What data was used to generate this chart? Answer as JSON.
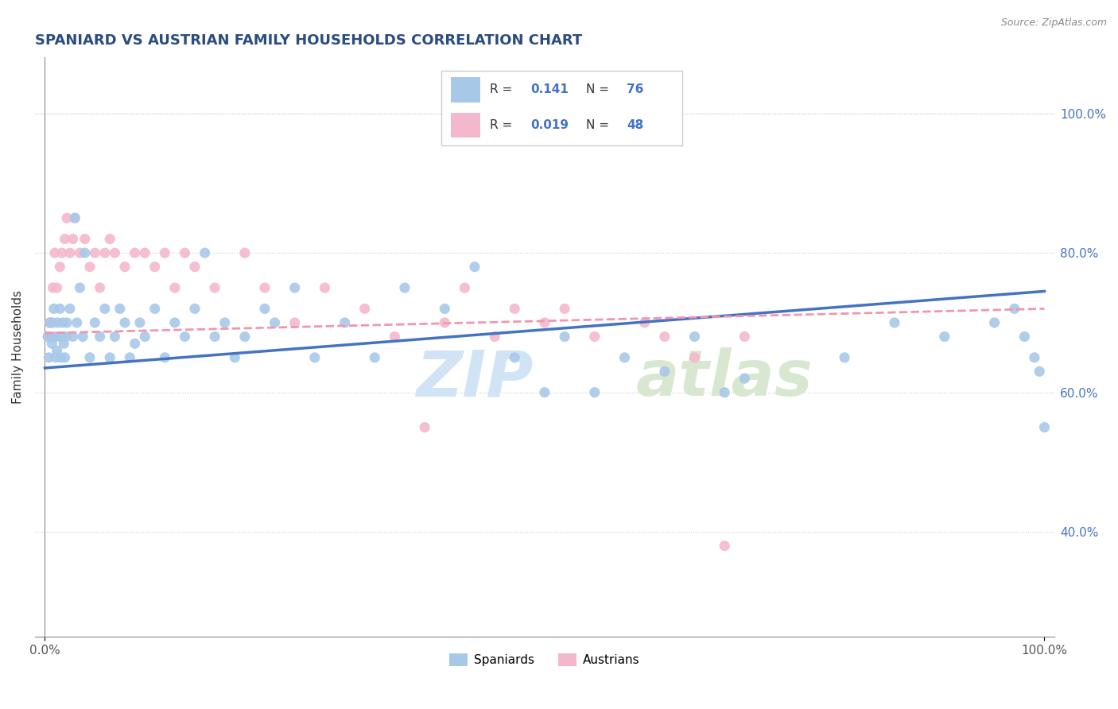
{
  "title": "SPANIARD VS AUSTRIAN FAMILY HOUSEHOLDS CORRELATION CHART",
  "source": "Source: ZipAtlas.com",
  "ylabel": "Family Households",
  "spaniard_color": "#a8c8e8",
  "austrian_color": "#f4b8cc",
  "spaniard_line_color": "#4472c4",
  "austrian_line_color": "#f096b0",
  "yticks": [
    40,
    60,
    80,
    100
  ],
  "ytick_labels": [
    "40.0%",
    "60.0%",
    "80.0%",
    "100.0%"
  ],
  "R_spaniard": "0.141",
  "N_spaniard": "76",
  "R_austrian": "0.019",
  "N_austrian": "48",
  "spaniard_x": [
    0.3,
    0.4,
    0.5,
    0.6,
    0.7,
    0.8,
    0.9,
    1.0,
    1.1,
    1.2,
    1.3,
    1.4,
    1.5,
    1.6,
    1.7,
    1.8,
    1.9,
    2.0,
    2.1,
    2.2,
    2.5,
    2.8,
    3.0,
    3.2,
    3.5,
    3.8,
    4.0,
    4.5,
    5.0,
    5.5,
    6.0,
    6.5,
    7.0,
    7.5,
    8.0,
    8.5,
    9.0,
    9.5,
    10.0,
    11.0,
    12.0,
    13.0,
    14.0,
    15.0,
    16.0,
    17.0,
    18.0,
    19.0,
    20.0,
    22.0,
    23.0,
    25.0,
    27.0,
    30.0,
    33.0,
    36.0,
    40.0,
    43.0,
    47.0,
    50.0,
    52.0,
    55.0,
    58.0,
    62.0,
    65.0,
    68.0,
    70.0,
    80.0,
    85.0,
    90.0,
    95.0,
    97.0,
    98.0,
    99.0,
    99.5,
    100.0
  ],
  "spaniard_y": [
    68,
    65,
    70,
    68,
    67,
    70,
    72,
    68,
    65,
    66,
    70,
    68,
    72,
    65,
    68,
    70,
    67,
    65,
    68,
    70,
    72,
    68,
    85,
    70,
    75,
    68,
    80,
    65,
    70,
    68,
    72,
    65,
    68,
    72,
    70,
    65,
    67,
    70,
    68,
    72,
    65,
    70,
    68,
    72,
    80,
    68,
    70,
    65,
    68,
    72,
    70,
    75,
    65,
    70,
    65,
    75,
    72,
    78,
    65,
    60,
    68,
    60,
    65,
    63,
    68,
    60,
    62,
    65,
    70,
    68,
    70,
    72,
    68,
    65,
    63,
    55
  ],
  "austrian_x": [
    0.3,
    0.5,
    0.8,
    1.0,
    1.2,
    1.5,
    1.7,
    2.0,
    2.2,
    2.5,
    2.8,
    3.0,
    3.5,
    4.0,
    4.5,
    5.0,
    5.5,
    6.0,
    6.5,
    7.0,
    8.0,
    9.0,
    10.0,
    11.0,
    12.0,
    13.0,
    14.0,
    15.0,
    17.0,
    20.0,
    22.0,
    25.0,
    28.0,
    32.0,
    35.0,
    38.0,
    40.0,
    42.0,
    45.0,
    47.0,
    50.0,
    52.0,
    55.0,
    60.0,
    62.0,
    65.0,
    68.0,
    70.0
  ],
  "austrian_y": [
    68,
    70,
    75,
    80,
    75,
    78,
    80,
    82,
    85,
    80,
    82,
    85,
    80,
    82,
    78,
    80,
    75,
    80,
    82,
    80,
    78,
    80,
    80,
    78,
    80,
    75,
    80,
    78,
    75,
    80,
    75,
    70,
    75,
    72,
    68,
    55,
    70,
    75,
    68,
    72,
    70,
    72,
    68,
    70,
    68,
    65,
    38,
    68
  ],
  "sp_line_x0": 0,
  "sp_line_x1": 100,
  "sp_line_y0": 63.5,
  "sp_line_y1": 74.5,
  "au_line_x0": 0,
  "au_line_x1": 100,
  "au_line_y0": 68.5,
  "au_line_y1": 72.0,
  "watermark_zip_color": "#d0e4f5",
  "watermark_atlas_color": "#d8e8d0",
  "xlim": [
    -1,
    101
  ],
  "ylim": [
    25,
    108
  ]
}
